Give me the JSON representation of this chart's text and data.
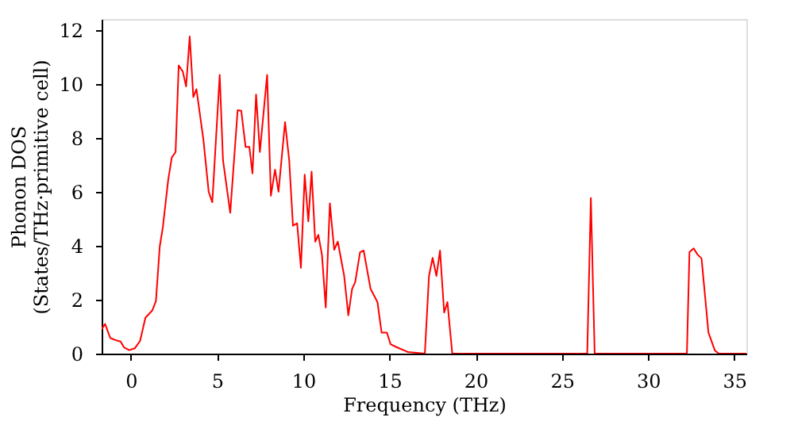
{
  "chart_data": {
    "type": "line",
    "xlabel": "Frequency (THz)",
    "ylabel": "Phonon DOS\n(States/THz·primitive cell)",
    "xlim": [
      -1.7,
      35.7
    ],
    "ylim": [
      0,
      12.4
    ],
    "xticks": [
      0,
      5,
      10,
      15,
      20,
      25,
      30,
      35
    ],
    "yticks": [
      0,
      2,
      4,
      6,
      8,
      10,
      12
    ],
    "grid": false,
    "legend": false,
    "marker": "none",
    "line_style": "solid",
    "series": [
      {
        "color": "#ff0000",
        "x": [
          -1.7,
          -1.5,
          -1.2,
          -0.85,
          -0.6,
          -0.4,
          -0.1,
          0.23,
          0.53,
          0.84,
          1.24,
          1.45,
          1.67,
          1.85,
          2.16,
          2.37,
          2.59,
          2.77,
          3.01,
          3.2,
          3.41,
          3.62,
          3.8,
          4.2,
          4.51,
          4.72,
          5.15,
          5.34,
          5.76,
          6.19,
          6.4,
          6.65,
          6.87,
          7.05,
          7.26,
          7.48,
          7.9,
          8.12,
          8.36,
          8.56,
          8.94,
          9.18,
          9.4,
          9.64,
          9.86,
          10.08,
          10.29,
          10.48,
          10.69,
          10.87,
          11.08,
          11.3,
          11.54,
          11.79,
          12.0,
          12.37,
          12.61,
          12.83,
          13.01,
          13.29,
          13.5,
          13.9,
          14.3,
          14.54,
          14.85,
          15.06,
          15.37,
          16.07,
          17.05,
          17.29,
          17.5,
          17.72,
          17.93,
          18.17,
          18.36,
          18.64,
          26.47,
          26.68,
          26.9,
          32.25,
          32.4,
          32.64,
          32.87,
          33.1,
          33.5,
          33.87,
          34.1,
          35.7
        ],
        "values": [
          0.9,
          1.1,
          0.58,
          0.49,
          0.45,
          0.23,
          0.13,
          0.2,
          0.47,
          1.33,
          1.6,
          1.95,
          3.96,
          4.68,
          6.43,
          7.27,
          7.47,
          10.68,
          10.45,
          9.9,
          11.75,
          9.51,
          9.8,
          7.95,
          6.0,
          5.61,
          10.33,
          7.17,
          5.22,
          9.02,
          9.0,
          7.66,
          7.66,
          6.68,
          9.6,
          7.47,
          10.33,
          5.85,
          6.82,
          6.0,
          8.58,
          7.17,
          4.74,
          4.83,
          3.18,
          6.63,
          4.9,
          6.74,
          4.15,
          4.4,
          3.67,
          1.71,
          5.57,
          3.85,
          4.15,
          2.88,
          1.42,
          2.4,
          2.65,
          3.76,
          3.82,
          2.4,
          1.91,
          0.78,
          0.78,
          0.35,
          0.25,
          0.06,
          0,
          2.88,
          3.55,
          2.88,
          3.82,
          1.52,
          1.91,
          0,
          0,
          5.77,
          0,
          0,
          3.76,
          3.9,
          3.67,
          3.53,
          0.78,
          0.12,
          0,
          0
        ]
      }
    ]
  }
}
